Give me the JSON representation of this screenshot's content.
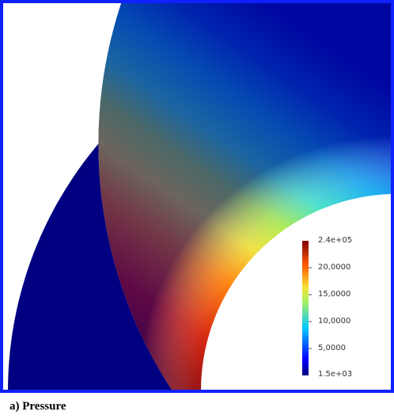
{
  "figure": {
    "caption": "a) Pressure",
    "frame_color": "#1020ff",
    "outer_region_color": "#000080"
  },
  "colorbar": {
    "colormap": "jet",
    "max_label": "2.4e+05",
    "min_label": "1.5e+03",
    "tick_labels": [
      "20,0000",
      "15,0000",
      "10,0000",
      "5,0000"
    ],
    "gradient_colors": [
      "#000080",
      "#0000ff",
      "#00c8ff",
      "#f5e53a",
      "#ff5a00",
      "#800000"
    ]
  }
}
